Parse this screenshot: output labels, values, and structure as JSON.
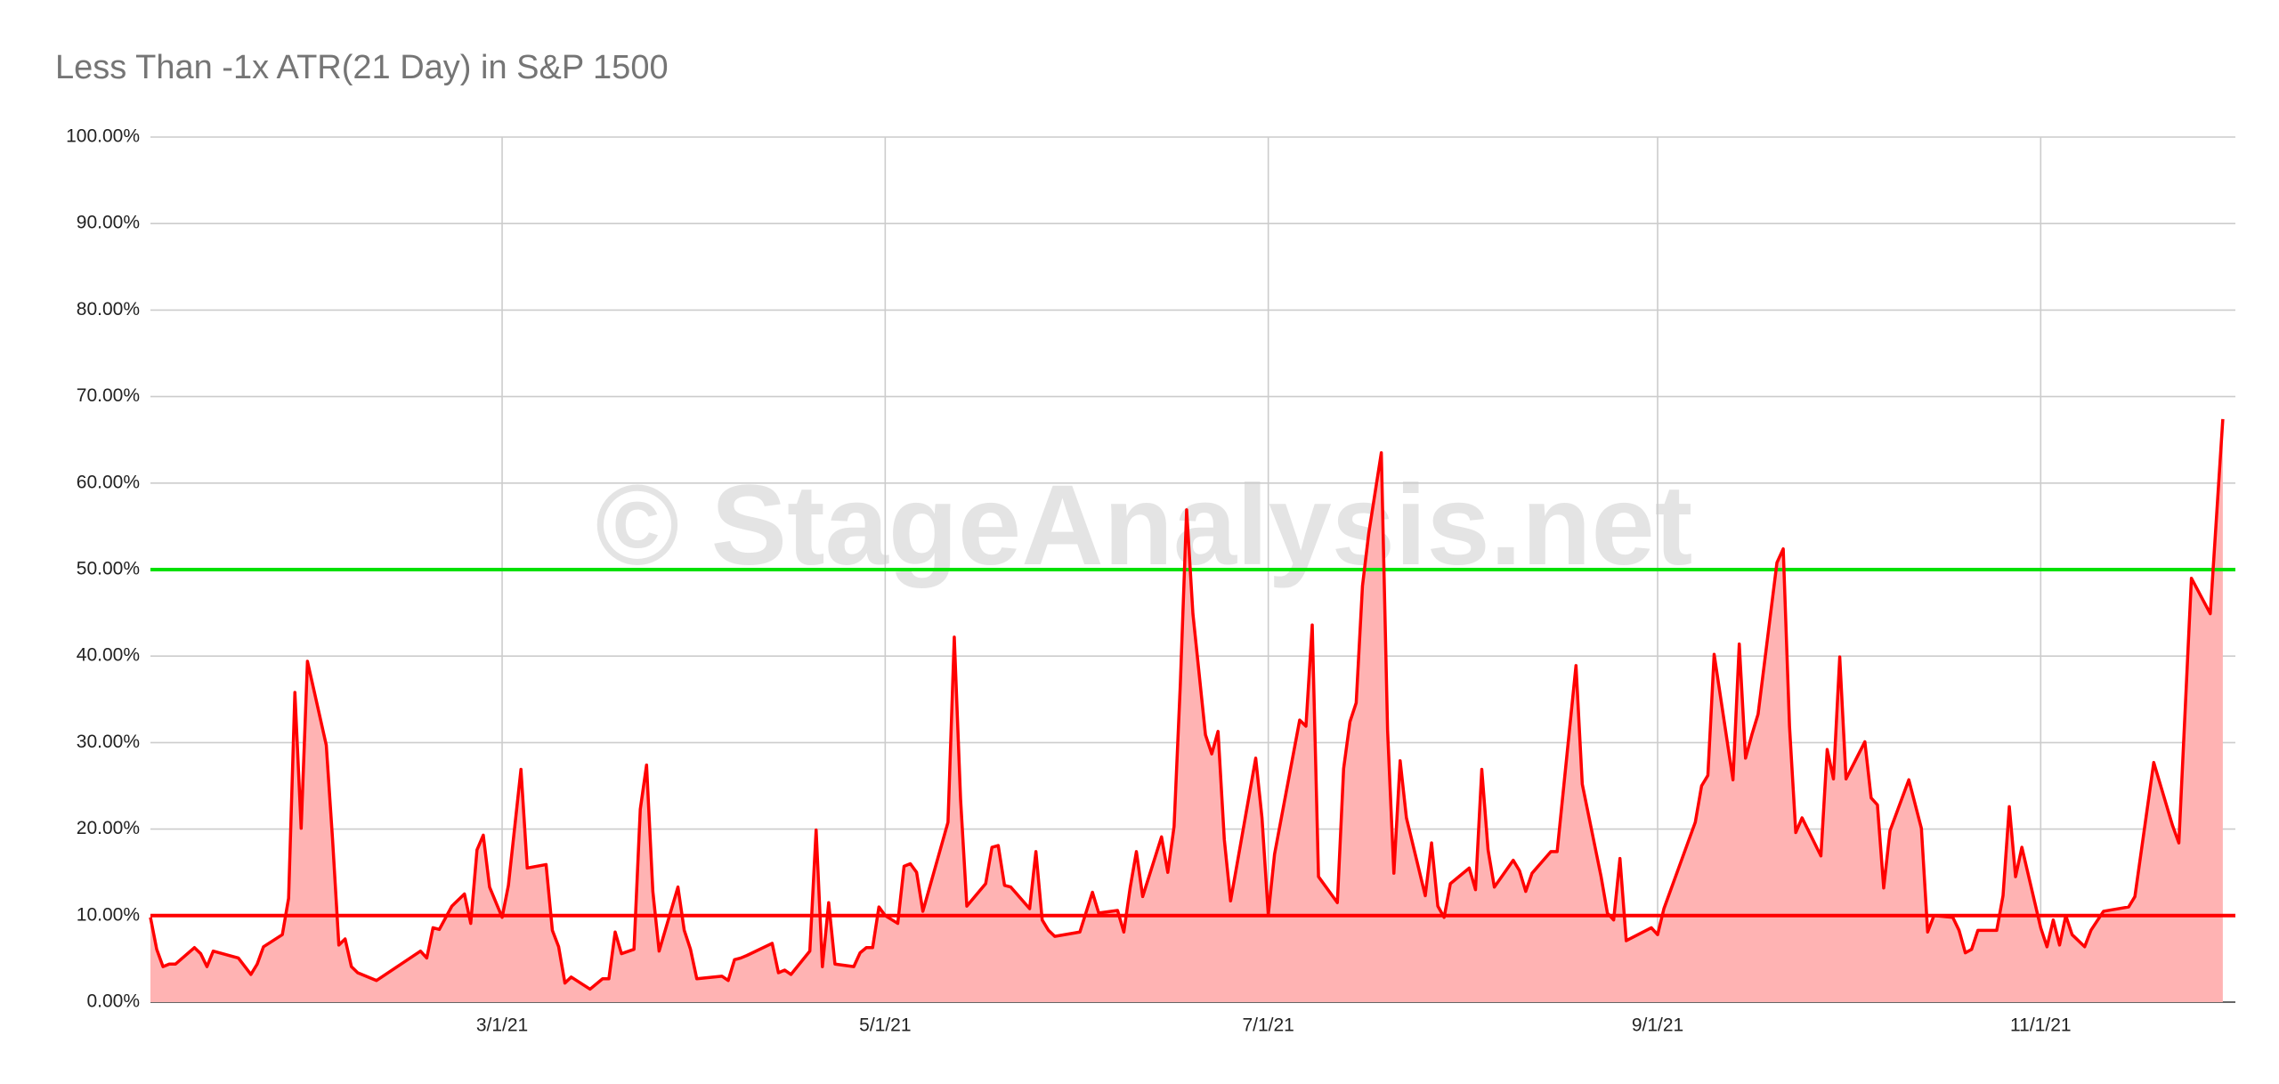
{
  "chart_data": {
    "type": "area",
    "title": "Less Than -1x ATR(21 Day) in S&P 1500",
    "watermark": "© StageAnalysis.net",
    "color": "#ff0000",
    "fill_color": "#ffb3b3",
    "grid": true,
    "x": [
      "1/4/21",
      "1/5/21",
      "1/6/21",
      "1/7/21",
      "1/8/21",
      "1/11/21",
      "1/12/21",
      "1/13/21",
      "1/14/21",
      "1/18/21",
      "1/20/21",
      "1/21/21",
      "1/22/21",
      "1/25/21",
      "1/26/21",
      "1/27/21",
      "1/28/21",
      "1/29/21",
      "2/1/21",
      "2/2/21",
      "2/3/21",
      "2/4/21",
      "2/5/21",
      "2/6/21",
      "2/9/21",
      "2/16/21",
      "2/17/21",
      "2/18/21",
      "2/19/21",
      "2/21/21",
      "2/23/21",
      "2/24/21",
      "2/25/21",
      "2/26/21",
      "2/27/21",
      "3/1/21",
      "3/2/21",
      "3/4/21",
      "3/5/21",
      "3/8/21",
      "3/9/21",
      "3/10/21",
      "3/11/21",
      "3/12/21",
      "3/15/21",
      "3/17/21",
      "3/18/21",
      "3/19/21",
      "3/20/21",
      "3/22/21",
      "3/23/21",
      "3/24/21",
      "3/25/21",
      "3/26/21",
      "3/29/21",
      "3/30/21",
      "3/31/21",
      "4/1/21",
      "4/5/21",
      "4/6/21",
      "4/7/21",
      "4/8/21",
      "4/9/21",
      "4/13/21",
      "4/14/21",
      "4/15/21",
      "4/16/21",
      "4/19/21",
      "4/20/21",
      "4/21/21",
      "4/22/21",
      "4/23/21",
      "4/26/21",
      "4/27/21",
      "4/28/21",
      "4/29/21",
      "4/30/21",
      "5/1/21",
      "5/3/21",
      "5/4/21",
      "5/5/21",
      "5/6/21",
      "5/7/21",
      "5/11/21",
      "5/12/21",
      "5/13/21",
      "5/14/21",
      "5/17/21",
      "5/18/21",
      "5/19/21",
      "5/20/21",
      "5/21/21",
      "5/24/21",
      "5/25/21",
      "5/26/21",
      "5/27/21",
      "5/28/21",
      "6/1/21",
      "6/3/21",
      "6/4/21",
      "6/7/21",
      "6/8/21",
      "6/9/21",
      "6/10/21",
      "6/11/21",
      "6/14/21",
      "6/15/21",
      "6/16/21",
      "6/17/21",
      "6/18/21",
      "6/19/21",
      "6/21/21",
      "6/22/21",
      "6/23/21",
      "6/24/21",
      "6/25/21",
      "6/29/21",
      "6/30/21",
      "7/1/21",
      "7/2/21",
      "7/6/21",
      "7/7/21",
      "7/8/21",
      "7/9/21",
      "7/12/21",
      "7/13/21",
      "7/14/21",
      "7/15/21",
      "7/16/21",
      "7/17/21",
      "7/19/21",
      "7/20/21",
      "7/21/21",
      "7/22/21",
      "7/23/21",
      "7/26/21",
      "7/27/21",
      "7/28/21",
      "7/29/21",
      "7/30/21",
      "8/2/21",
      "8/3/21",
      "8/4/21",
      "8/5/21",
      "8/6/21",
      "8/9/21",
      "8/10/21",
      "8/11/21",
      "8/12/21",
      "8/15/21",
      "8/16/21",
      "8/19/21",
      "8/20/21",
      "8/23/21",
      "8/24/21",
      "8/25/21",
      "8/26/21",
      "8/27/21",
      "8/31/21",
      "9/1/21",
      "9/2/21",
      "9/7/21",
      "9/8/21",
      "9/9/21",
      "9/10/21",
      "9/13/21",
      "9/14/21",
      "9/15/21",
      "9/16/21",
      "9/17/21",
      "9/20/21",
      "9/21/21",
      "9/22/21",
      "9/23/21",
      "9/24/21",
      "9/27/21",
      "9/28/21",
      "9/29/21",
      "9/30/21",
      "10/1/21",
      "10/4/21",
      "10/5/21",
      "10/6/21",
      "10/7/21",
      "10/8/21",
      "10/11/21",
      "10/13/21",
      "10/14/21",
      "10/15/21",
      "10/18/21",
      "10/19/21",
      "10/20/21",
      "10/21/21",
      "10/22/21",
      "10/25/21",
      "10/26/21",
      "10/27/21",
      "10/28/21",
      "10/29/21",
      "11/1/21",
      "11/2/21",
      "11/3/21",
      "11/4/21",
      "11/5/21",
      "11/6/21",
      "11/8/21",
      "11/9/21",
      "11/11/21",
      "11/15/21",
      "11/16/21",
      "11/19/21",
      "11/22/21",
      "11/23/21",
      "11/25/21",
      "11/28/21",
      "11/30/21"
    ],
    "values": [
      9.8,
      6.1,
      4.1,
      4.4,
      4.4,
      6.3,
      5.6,
      4.1,
      5.9,
      5.1,
      3.2,
      4.4,
      6.4,
      7.8,
      12.0,
      35.8,
      20.1,
      39.4,
      29.7,
      18.8,
      6.6,
      7.3,
      4.1,
      3.4,
      2.5,
      5.9,
      5.1,
      8.6,
      8.4,
      11.1,
      12.5,
      9.1,
      17.6,
      19.3,
      13.3,
      9.8,
      13.5,
      26.9,
      15.5,
      15.9,
      8.3,
      6.4,
      2.2,
      2.9,
      1.5,
      2.7,
      2.7,
      8.1,
      5.6,
      6.1,
      22.3,
      27.4,
      12.8,
      5.9,
      13.3,
      8.3,
      6.1,
      2.7,
      3.0,
      2.5,
      4.9,
      5.1,
      5.4,
      6.8,
      3.4,
      3.7,
      3.2,
      5.9,
      19.9,
      4.1,
      11.5,
      4.4,
      4.1,
      5.7,
      6.3,
      6.3,
      11.0,
      10.0,
      9.1,
      15.7,
      16.0,
      15.0,
      10.5,
      20.8,
      42.2,
      23.5,
      11.1,
      13.7,
      17.9,
      18.1,
      13.5,
      13.3,
      10.8,
      17.4,
      9.5,
      8.3,
      7.6,
      8.1,
      12.7,
      10.3,
      10.6,
      8.1,
      13.2,
      17.4,
      12.2,
      19.1,
      15.0,
      20.3,
      36.8,
      56.9,
      44.9,
      30.9,
      28.7,
      31.3,
      18.8,
      11.7,
      28.2,
      21.3,
      10.1,
      17.1,
      32.6,
      31.9,
      43.6,
      14.5,
      11.5,
      27.0,
      32.4,
      34.6,
      48.1,
      54.2,
      63.5,
      31.4,
      14.9,
      27.9,
      21.3,
      12.3,
      18.4,
      11.1,
      9.8,
      13.7,
      15.5,
      13.0,
      26.9,
      17.6,
      13.3,
      16.4,
      15.2,
      12.8,
      14.9,
      17.4,
      17.4,
      38.9,
      25.2,
      14.5,
      10.3,
      9.5,
      16.6,
      7.1,
      8.6,
      7.8,
      10.8,
      20.8,
      25.0,
      26.2,
      40.2,
      25.7,
      41.4,
      28.2,
      30.9,
      33.3,
      50.8,
      52.4,
      31.9,
      19.6,
      21.3,
      16.9,
      29.2,
      25.8,
      39.9,
      25.8,
      30.1,
      23.6,
      22.8,
      13.2,
      19.8,
      25.7,
      20.1,
      8.1,
      10.0,
      9.8,
      8.3,
      5.7,
      6.1,
      8.3,
      8.3,
      12.3,
      22.6,
      14.5,
      17.9,
      8.6,
      6.4,
      9.5,
      6.6,
      10.0,
      7.8,
      6.4,
      8.3,
      10.5,
      11.0,
      12.2,
      27.7,
      20.4,
      18.4,
      49.0,
      44.9,
      67.4
    ],
    "xlim": [
      "1/4/21",
      "12/2/21"
    ],
    "xticks": [
      "3/1/21",
      "5/1/21",
      "7/1/21",
      "9/1/21",
      "11/1/21"
    ],
    "ylim": [
      0,
      100
    ],
    "yticks": [
      {
        "value": 0,
        "label": "0.00%"
      },
      {
        "value": 10,
        "label": "10.00%"
      },
      {
        "value": 20,
        "label": "20.00%"
      },
      {
        "value": 30,
        "label": "30.00%"
      },
      {
        "value": 40,
        "label": "40.00%"
      },
      {
        "value": 50,
        "label": "50.00%"
      },
      {
        "value": 60,
        "label": "60.00%"
      },
      {
        "value": 70,
        "label": "70.00%"
      },
      {
        "value": 80,
        "label": "80.00%"
      },
      {
        "value": 90,
        "label": "90.00%"
      },
      {
        "value": 100,
        "label": "100.00%"
      }
    ],
    "reference_lines": [
      {
        "value": 50,
        "color": "#00e000"
      },
      {
        "value": 10,
        "color": "#ff0000"
      }
    ]
  }
}
